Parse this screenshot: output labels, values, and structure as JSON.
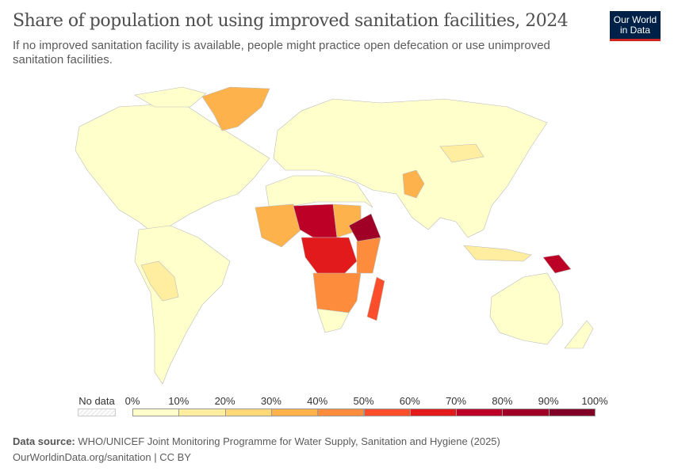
{
  "header": {
    "title": "Share of population not using improved sanitation facilities, 2024",
    "subtitle": "If no improved sanitation facility is available, people might practice open defecation or use unimproved sanitation facilities.",
    "logo": "Our World in Data"
  },
  "legend": {
    "no_data": "No data",
    "labels": [
      "0%",
      "10%",
      "20%",
      "30%",
      "40%",
      "50%",
      "60%",
      "70%",
      "80%",
      "90%",
      "100%"
    ],
    "colors": [
      "#ffffcc",
      "#ffeda0",
      "#fed976",
      "#feb24c",
      "#fd8d3c",
      "#fc4e2a",
      "#e31a1c",
      "#bd0026",
      "#a00026",
      "#800026"
    ]
  },
  "footer": {
    "source_label": "Data source:",
    "source": "WHO/UNICEF Joint Monitoring Programme for Water Supply, Sanitation and Hygiene (2025)",
    "link": "OurWorldinData.org/sanitation | CC BY"
  }
}
